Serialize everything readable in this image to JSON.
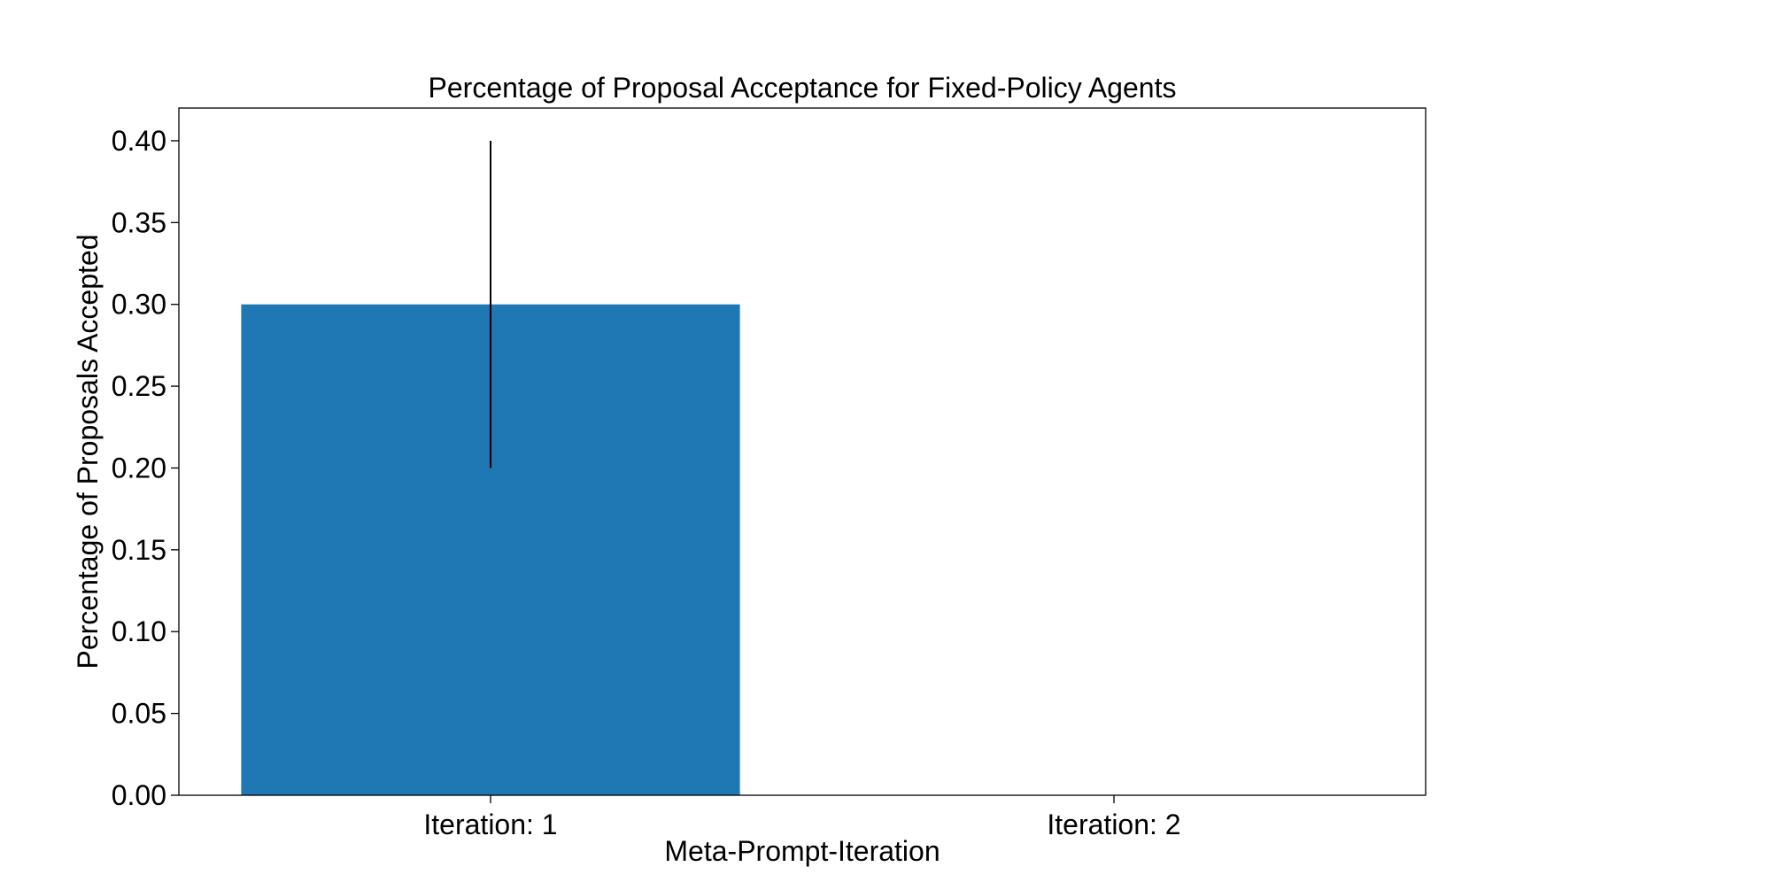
{
  "chart_data": {
    "type": "bar",
    "title": "Percentage of Proposal Acceptance for Fixed-Policy Agents",
    "xlabel": "Meta-Prompt-Iteration",
    "ylabel": "Percentage of Proposals Accepted",
    "categories": [
      "Iteration: 1",
      "Iteration: 2"
    ],
    "values": [
      0.3,
      0.0
    ],
    "error_bars": [
      {
        "low": 0.2,
        "high": 0.4
      },
      {
        "low": 0.0,
        "high": 0.0
      }
    ],
    "ylim": [
      0.0,
      0.42
    ],
    "yticks": [
      0.0,
      0.05,
      0.1,
      0.15,
      0.2,
      0.25,
      0.3,
      0.35,
      0.4
    ],
    "ytick_labels": [
      "0.00",
      "0.05",
      "0.10",
      "0.15",
      "0.20",
      "0.25",
      "0.30",
      "0.35",
      "0.40"
    ],
    "grid": false,
    "legend": "none",
    "bar_color": "#1f77b4",
    "error_color": "#000000"
  }
}
